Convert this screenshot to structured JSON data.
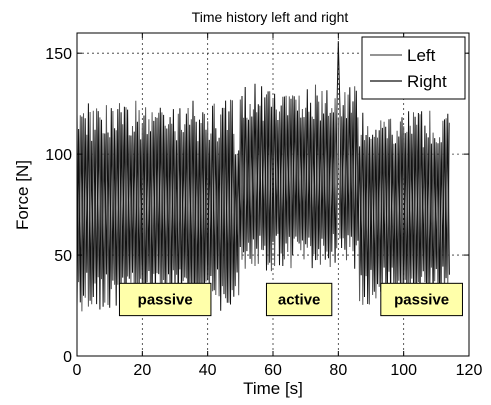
{
  "chart_data": {
    "type": "line",
    "title": "Time history left and right",
    "xlabel": "Time [s]",
    "ylabel": "Force [N]",
    "xlim": [
      0,
      120
    ],
    "ylim": [
      0,
      160
    ],
    "xticks": [
      0,
      20,
      40,
      60,
      80,
      100,
      120
    ],
    "yticks": [
      0,
      50,
      100,
      150
    ],
    "xtick_labels": [
      "0",
      "20",
      "40",
      "60",
      "80",
      "100",
      "120"
    ],
    "ytick_labels": [
      "0",
      "50",
      "100",
      "150"
    ],
    "grid": true,
    "legend_position": "top-right",
    "series": [
      {
        "name": "Left",
        "color": "#555555",
        "x_range": [
          0,
          114
        ],
        "oscillation_period_s": 1.0
      },
      {
        "name": "Right",
        "color": "#111111",
        "x_range": [
          0,
          114
        ],
        "oscillation_period_s": 1.0
      }
    ],
    "envelope": [
      {
        "x_range": [
          0,
          48
        ],
        "low": 22,
        "high": 127
      },
      {
        "x_range": [
          48,
          49.5
        ],
        "low": 28,
        "high": 105
      },
      {
        "x_range": [
          50,
          86
        ],
        "low": 42,
        "high": 135
      },
      {
        "x_range": [
          86,
          114
        ],
        "low": 25,
        "high": 122
      }
    ],
    "spike": {
      "x": 80,
      "y": 156
    },
    "annotations": [
      {
        "text": "passive",
        "x_range": [
          13,
          41
        ],
        "y_range": [
          20,
          36
        ]
      },
      {
        "text": "active",
        "x_range": [
          58,
          78
        ],
        "y_range": [
          20,
          36
        ]
      },
      {
        "text": "passive",
        "x_range": [
          93,
          118
        ],
        "y_range": [
          20,
          36
        ]
      }
    ],
    "annotation_fill": "#ffffaa"
  }
}
